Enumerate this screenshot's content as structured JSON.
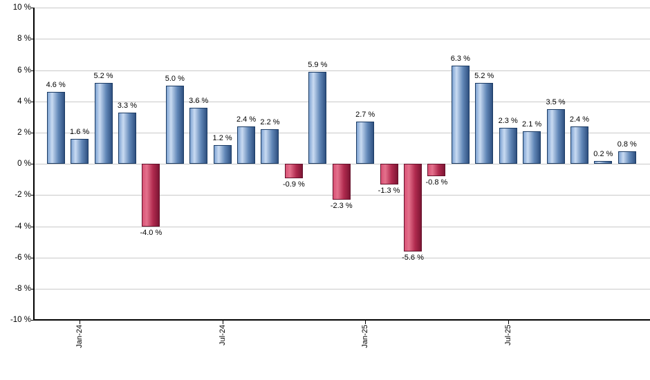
{
  "chart_data": {
    "type": "bar",
    "title": "",
    "xlabel": "",
    "ylabel": "",
    "ylim": [
      -10,
      10
    ],
    "grid": true,
    "legend": null,
    "values": [
      4.6,
      1.6,
      5.2,
      3.3,
      -4.0,
      5.0,
      3.6,
      1.2,
      2.4,
      2.2,
      -0.9,
      5.9,
      -2.3,
      2.7,
      -1.3,
      -5.6,
      -0.8,
      6.3,
      5.2,
      2.3,
      2.1,
      3.5,
      2.4,
      0.2,
      0.8
    ],
    "bar_label_suffix": " %",
    "bar_label_decimals": 1,
    "y_ticks": [
      {
        "value": 10,
        "label": "10 %"
      },
      {
        "value": 8,
        "label": "8 %"
      },
      {
        "value": 6,
        "label": "6 %"
      },
      {
        "value": 4,
        "label": "4 %"
      },
      {
        "value": 2,
        "label": "2 %"
      },
      {
        "value": 0,
        "label": "0 %"
      },
      {
        "value": -2,
        "label": "-2 %"
      },
      {
        "value": -4,
        "label": "-4 %"
      },
      {
        "value": -6,
        "label": "-6 %"
      },
      {
        "value": -8,
        "label": "-8 %"
      },
      {
        "value": -10,
        "label": "-10 %"
      }
    ],
    "x_ticks": [
      {
        "bar_index": 1,
        "label": "Jan-24"
      },
      {
        "bar_index": 7,
        "label": "Jul-24"
      },
      {
        "bar_index": 13,
        "label": "Jan-25"
      },
      {
        "bar_index": 19,
        "label": "Jul-25"
      }
    ],
    "colors": {
      "positive_gradient": [
        "#7ea3d2",
        "#c9dbf2",
        "#6288b8",
        "#2f5181"
      ],
      "positive_border": "#1a3a63",
      "negative_gradient": [
        "#d85275",
        "#e4718c",
        "#b02a4e",
        "#7d1634"
      ],
      "negative_border": "#64102a",
      "grid": "#c9c9c9",
      "axis": "#000000",
      "text": "#000000",
      "background": "#ffffff"
    }
  }
}
